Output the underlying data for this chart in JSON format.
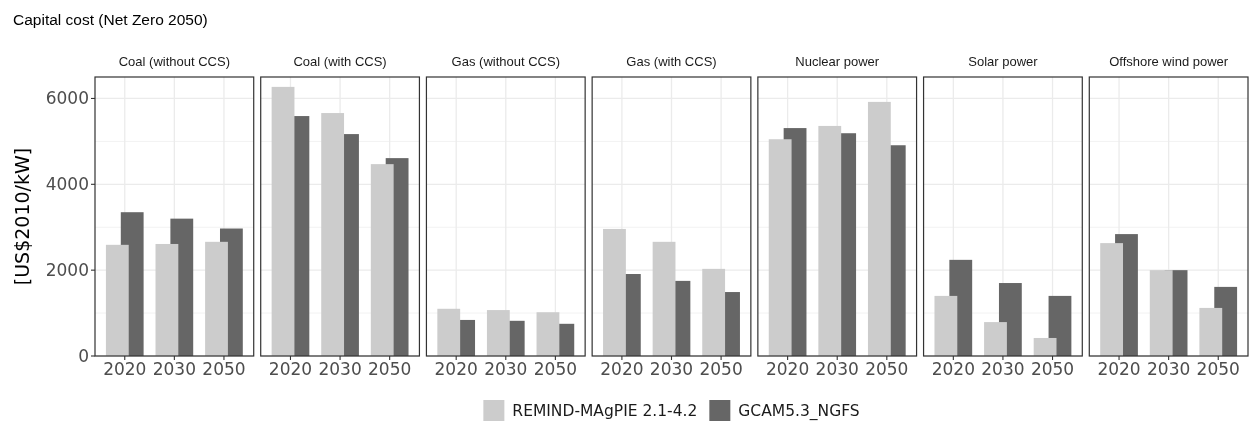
{
  "chart_data": [
    {
      "type": "bar",
      "title": "Capital cost (Net Zero 2050)",
      "subtitle": "Coal (without CCS)",
      "ylabel": "[US$2010/kW]",
      "categories": [
        "2020",
        "2030",
        "2050"
      ],
      "series": [
        {
          "color": "#cccccc",
          "values": [
            2590,
            2610,
            2660
          ]
        },
        {
          "color": "#666666",
          "values": [
            3350,
            3200,
            2970
          ]
        }
      ],
      "ylim": [
        0,
        6500
      ],
      "yticks": [
        0,
        2000,
        4000,
        6000
      ],
      "grid": true
    },
    {
      "type": "bar",
      "subtitle": "Coal (with CCS)",
      "categories": [
        "2020",
        "2030",
        "2050"
      ],
      "series": [
        {
          "color": "#cccccc",
          "values": [
            6270,
            5660,
            4470
          ]
        },
        {
          "color": "#666666",
          "values": [
            5590,
            5170,
            4610
          ]
        }
      ],
      "ylim": [
        0,
        6500
      ],
      "yticks": [
        0,
        2000,
        4000,
        6000
      ],
      "grid": true,
      "tick_labels": "x"
    },
    {
      "type": "bar",
      "subtitle": "Gas (without CCS)",
      "categories": [
        "2020",
        "2030",
        "2050"
      ],
      "series": [
        {
          "color": "#cccccc",
          "values": [
            1100,
            1070,
            1020
          ]
        },
        {
          "color": "#666666",
          "values": [
            840,
            820,
            750
          ]
        }
      ],
      "ylim": [
        0,
        6500
      ],
      "yticks": [
        0,
        2000,
        4000,
        6000
      ],
      "grid": true,
      "tick_labels": "x"
    },
    {
      "type": "bar",
      "subtitle": "Gas (with CCS)",
      "categories": [
        "2020",
        "2030",
        "2050"
      ],
      "series": [
        {
          "name": "REMIND-MAgPIE 2.1-4.2",
          "color": "#cccccc",
          "values": [
            2960,
            2660,
            2030
          ]
        },
        {
          "name": "GCAM5.3_NGFS",
          "color": "#666666",
          "values": [
            1910,
            1750,
            1490
          ]
        }
      ],
      "ylim": [
        0,
        6500
      ],
      "yticks": [
        0,
        2000,
        4000,
        6000
      ],
      "grid": true,
      "tick_labels": "x",
      "legend": "bottom"
    },
    {
      "type": "bar",
      "subtitle": "Nuclear power",
      "categories": [
        "2020",
        "2030",
        "2050"
      ],
      "series": [
        {
          "color": "#cccccc",
          "values": [
            5050,
            5360,
            5920
          ]
        },
        {
          "color": "#666666",
          "values": [
            5310,
            5190,
            4910
          ]
        }
      ],
      "ylim": [
        0,
        6500
      ],
      "yticks": [
        0,
        2000,
        4000,
        6000
      ],
      "grid": true,
      "tick_labels": "x"
    },
    {
      "type": "bar",
      "subtitle": "Solar power",
      "categories": [
        "2020",
        "2030",
        "2050"
      ],
      "series": [
        {
          "color": "#cccccc",
          "values": [
            1400,
            790,
            420
          ]
        },
        {
          "color": "#666666",
          "values": [
            2240,
            1700,
            1400
          ]
        }
      ],
      "ylim": [
        0,
        6500
      ],
      "yticks": [
        0,
        2000,
        4000,
        6000
      ],
      "grid": true,
      "tick_labels": "x"
    },
    {
      "type": "bar",
      "subtitle": "Offshore wind power",
      "categories": [
        "2020",
        "2030",
        "2050"
      ],
      "series": [
        {
          "color": "#cccccc",
          "values": [
            2630,
            2000,
            1120
          ]
        },
        {
          "color": "#666666",
          "values": [
            2840,
            2000,
            1610
          ]
        }
      ],
      "ylim": [
        0,
        6500
      ],
      "yticks": [
        0,
        2000,
        4000,
        6000
      ],
      "grid": true,
      "tick_labels": "x"
    }
  ]
}
